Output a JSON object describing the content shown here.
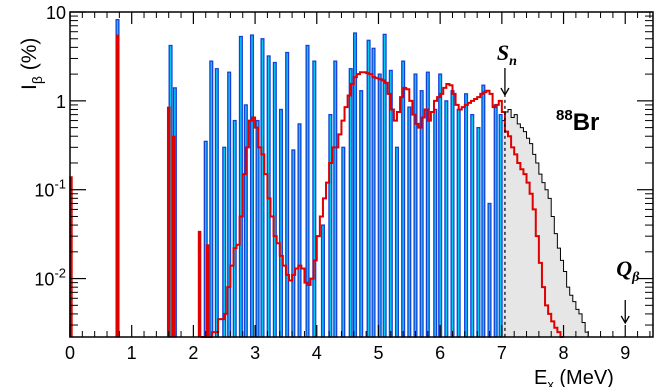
{
  "chart_data": {
    "type": "bar",
    "x_axis": {
      "label_main": "E",
      "label_sub": "x",
      "label_unit": " (MeV)",
      "min": 0,
      "max": 9.45,
      "ticks": [
        0,
        1,
        2,
        3,
        4,
        5,
        6,
        7,
        8,
        9
      ],
      "tick_labels": [
        "0",
        "1",
        "2",
        "3",
        "4",
        "5",
        "6",
        "7",
        "8",
        "9"
      ]
    },
    "y_axis": {
      "label_main": "I",
      "label_sub": "β",
      "label_unit": " (%)",
      "scale": "log",
      "min": 0.0022,
      "max": 10,
      "ticks": [
        10,
        1,
        0.1,
        0.01
      ],
      "tick_labels": [
        {
          "base": "10",
          "exp": ""
        },
        {
          "base": "1",
          "exp": ""
        },
        {
          "base": "10",
          "exp": "-1"
        },
        {
          "base": "10",
          "exp": "-2"
        }
      ]
    },
    "annotations": {
      "nucleus_mass": "88",
      "nucleus_symbol": "Br",
      "sn_label_main": "S",
      "sn_label_sub": "n",
      "sn_energy": 7.05,
      "qb_label_main": "Q",
      "qb_label_sub": "β",
      "qb_energy": 9.0
    },
    "series": [
      {
        "kind": "blue-levels",
        "fill": "#00ccf0",
        "stroke": "#1a3fd8",
        "bars": [
          [
            0.77,
            8.2
          ],
          [
            1.63,
            4.2
          ],
          [
            1.7,
            1.4
          ],
          [
            2.2,
            0.35
          ],
          [
            2.29,
            2.8
          ],
          [
            2.38,
            2.3
          ],
          [
            2.5,
            0.3
          ],
          [
            2.58,
            2.1
          ],
          [
            2.67,
            0.6
          ],
          [
            2.77,
            5.3
          ],
          [
            2.85,
            0.9
          ],
          [
            2.95,
            5.5
          ],
          [
            3.04,
            0.6
          ],
          [
            3.12,
            5.0
          ],
          [
            3.22,
            3.2
          ],
          [
            3.32,
            2.7
          ],
          [
            3.42,
            0.8
          ],
          [
            3.52,
            3.5
          ],
          [
            3.62,
            0.28
          ],
          [
            3.72,
            0.55
          ],
          [
            3.85,
            4.2
          ],
          [
            3.96,
            2.8
          ],
          [
            4.1,
            0.04
          ],
          [
            4.22,
            0.7
          ],
          [
            4.3,
            2.8
          ],
          [
            4.43,
            0.3
          ],
          [
            4.55,
            2.3
          ],
          [
            4.62,
            5.8
          ],
          [
            4.72,
            1.3
          ],
          [
            4.84,
            4.8
          ],
          [
            4.92,
            3.9
          ],
          [
            5.02,
            2.0
          ],
          [
            5.1,
            5.6
          ],
          [
            5.2,
            2.2
          ],
          [
            5.3,
            0.3
          ],
          [
            5.4,
            2.8
          ],
          [
            5.5,
            0.85
          ],
          [
            5.6,
            2.0
          ],
          [
            5.7,
            1.3
          ],
          [
            5.8,
            2.1
          ],
          [
            5.92,
            0.8
          ],
          [
            6.0,
            2.0
          ],
          [
            6.1,
            1.0
          ],
          [
            6.2,
            1.3
          ],
          [
            6.3,
            0.8
          ],
          [
            6.42,
            1.2
          ],
          [
            6.52,
            0.7
          ],
          [
            6.62,
            0.5
          ],
          [
            6.7,
            1.5
          ],
          [
            6.8,
            0.07
          ],
          [
            6.9,
            0.9
          ],
          [
            6.98,
            0.7
          ]
        ]
      },
      {
        "kind": "red-discrete",
        "stroke": "#e00000",
        "bars": [
          [
            0.015,
            0.14
          ],
          [
            0.77,
            5.5
          ],
          [
            1.6,
            0.85
          ],
          [
            1.68,
            0.4
          ],
          [
            2.1,
            0.034
          ],
          [
            2.23,
            0.024
          ]
        ]
      },
      {
        "kind": "red-continuum",
        "stroke": "#e00000",
        "points": [
          [
            2.12,
            0.0022
          ],
          [
            2.2,
            0.0022
          ],
          [
            2.3,
            0.0025
          ],
          [
            2.4,
            0.0035
          ],
          [
            2.5,
            0.004
          ],
          [
            2.55,
            0.008
          ],
          [
            2.6,
            0.014
          ],
          [
            2.65,
            0.022
          ],
          [
            2.7,
            0.024
          ],
          [
            2.75,
            0.05
          ],
          [
            2.8,
            0.15
          ],
          [
            2.85,
            0.3
          ],
          [
            2.9,
            0.6
          ],
          [
            2.95,
            0.65
          ],
          [
            3.0,
            0.5
          ],
          [
            3.05,
            0.3
          ],
          [
            3.1,
            0.25
          ],
          [
            3.15,
            0.15
          ],
          [
            3.2,
            0.08
          ],
          [
            3.25,
            0.05
          ],
          [
            3.3,
            0.03
          ],
          [
            3.35,
            0.025
          ],
          [
            3.4,
            0.018
          ],
          [
            3.45,
            0.014
          ],
          [
            3.5,
            0.011
          ],
          [
            3.55,
            0.0095
          ],
          [
            3.6,
            0.011
          ],
          [
            3.65,
            0.013
          ],
          [
            3.7,
            0.014
          ],
          [
            3.75,
            0.013
          ],
          [
            3.8,
            0.009
          ],
          [
            3.85,
            0.0085
          ],
          [
            3.9,
            0.01
          ],
          [
            3.95,
            0.016
          ],
          [
            4.0,
            0.03
          ],
          [
            4.05,
            0.05
          ],
          [
            4.1,
            0.08
          ],
          [
            4.15,
            0.12
          ],
          [
            4.2,
            0.2
          ],
          [
            4.25,
            0.3
          ],
          [
            4.3,
            0.3
          ],
          [
            4.35,
            0.42
          ],
          [
            4.4,
            0.6
          ],
          [
            4.45,
            0.85
          ],
          [
            4.5,
            1.15
          ],
          [
            4.55,
            1.55
          ],
          [
            4.6,
            1.85
          ],
          [
            4.65,
            2.0
          ],
          [
            4.7,
            2.1
          ],
          [
            4.75,
            2.1
          ],
          [
            4.8,
            2.05
          ],
          [
            4.85,
            2.0
          ],
          [
            4.9,
            1.85
          ],
          [
            4.95,
            1.8
          ],
          [
            5.0,
            1.75
          ],
          [
            5.05,
            1.7
          ],
          [
            5.1,
            1.6
          ],
          [
            5.15,
            1.2
          ],
          [
            5.2,
            0.8
          ],
          [
            5.25,
            0.6
          ],
          [
            5.3,
            0.75
          ],
          [
            5.35,
            1.1
          ],
          [
            5.4,
            1.4
          ],
          [
            5.45,
            1.35
          ],
          [
            5.5,
            1.0
          ],
          [
            5.55,
            0.7
          ],
          [
            5.6,
            0.55
          ],
          [
            5.65,
            0.5
          ],
          [
            5.7,
            0.65
          ],
          [
            5.75,
            0.8
          ],
          [
            5.8,
            0.6
          ],
          [
            5.85,
            0.75
          ],
          [
            5.9,
            1.0
          ],
          [
            5.95,
            1.1
          ],
          [
            6.0,
            1.2
          ],
          [
            6.05,
            1.4
          ],
          [
            6.1,
            1.55
          ],
          [
            6.15,
            1.5
          ],
          [
            6.2,
            1.2
          ],
          [
            6.25,
            0.9
          ],
          [
            6.3,
            0.8
          ],
          [
            6.35,
            0.85
          ],
          [
            6.4,
            0.9
          ],
          [
            6.45,
            0.95
          ],
          [
            6.5,
            1.0
          ],
          [
            6.55,
            1.05
          ],
          [
            6.6,
            1.1
          ],
          [
            6.65,
            1.2
          ],
          [
            6.7,
            1.25
          ],
          [
            6.75,
            1.3
          ],
          [
            6.8,
            1.2
          ],
          [
            6.85,
            0.85
          ],
          [
            6.9,
            0.9
          ],
          [
            6.95,
            1.0
          ],
          [
            7.0,
            0.75
          ],
          [
            7.05,
            0.45
          ],
          [
            7.1,
            0.4
          ],
          [
            7.15,
            0.3
          ],
          [
            7.2,
            0.25
          ],
          [
            7.25,
            0.2
          ],
          [
            7.3,
            0.17
          ],
          [
            7.35,
            0.15
          ],
          [
            7.4,
            0.12
          ],
          [
            7.45,
            0.09
          ],
          [
            7.5,
            0.06
          ],
          [
            7.55,
            0.03
          ],
          [
            7.6,
            0.015
          ],
          [
            7.65,
            0.008
          ],
          [
            7.7,
            0.005
          ],
          [
            7.75,
            0.004
          ],
          [
            7.8,
            0.0033
          ],
          [
            7.85,
            0.0028
          ],
          [
            7.9,
            0.0025
          ],
          [
            7.95,
            0.0022
          ]
        ]
      },
      {
        "kind": "gray-continuum",
        "fill": "#e6e6e6",
        "stroke": "#000000",
        "points": [
          [
            7.0,
            0.6
          ],
          [
            7.05,
            0.75
          ],
          [
            7.1,
            0.8
          ],
          [
            7.15,
            0.65
          ],
          [
            7.2,
            0.7
          ],
          [
            7.25,
            0.55
          ],
          [
            7.3,
            0.5
          ],
          [
            7.35,
            0.45
          ],
          [
            7.4,
            0.38
          ],
          [
            7.45,
            0.33
          ],
          [
            7.5,
            0.25
          ],
          [
            7.55,
            0.2
          ],
          [
            7.6,
            0.15
          ],
          [
            7.65,
            0.12
          ],
          [
            7.7,
            0.1
          ],
          [
            7.75,
            0.08
          ],
          [
            7.8,
            0.05
          ],
          [
            7.85,
            0.032
          ],
          [
            7.9,
            0.022
          ],
          [
            7.95,
            0.016
          ],
          [
            8.0,
            0.012
          ],
          [
            8.05,
            0.008
          ],
          [
            8.1,
            0.0065
          ],
          [
            8.15,
            0.0055
          ],
          [
            8.2,
            0.0045
          ],
          [
            8.25,
            0.004
          ],
          [
            8.3,
            0.0032
          ],
          [
            8.35,
            0.0025
          ],
          [
            8.4,
            0.0022
          ]
        ]
      }
    ]
  }
}
